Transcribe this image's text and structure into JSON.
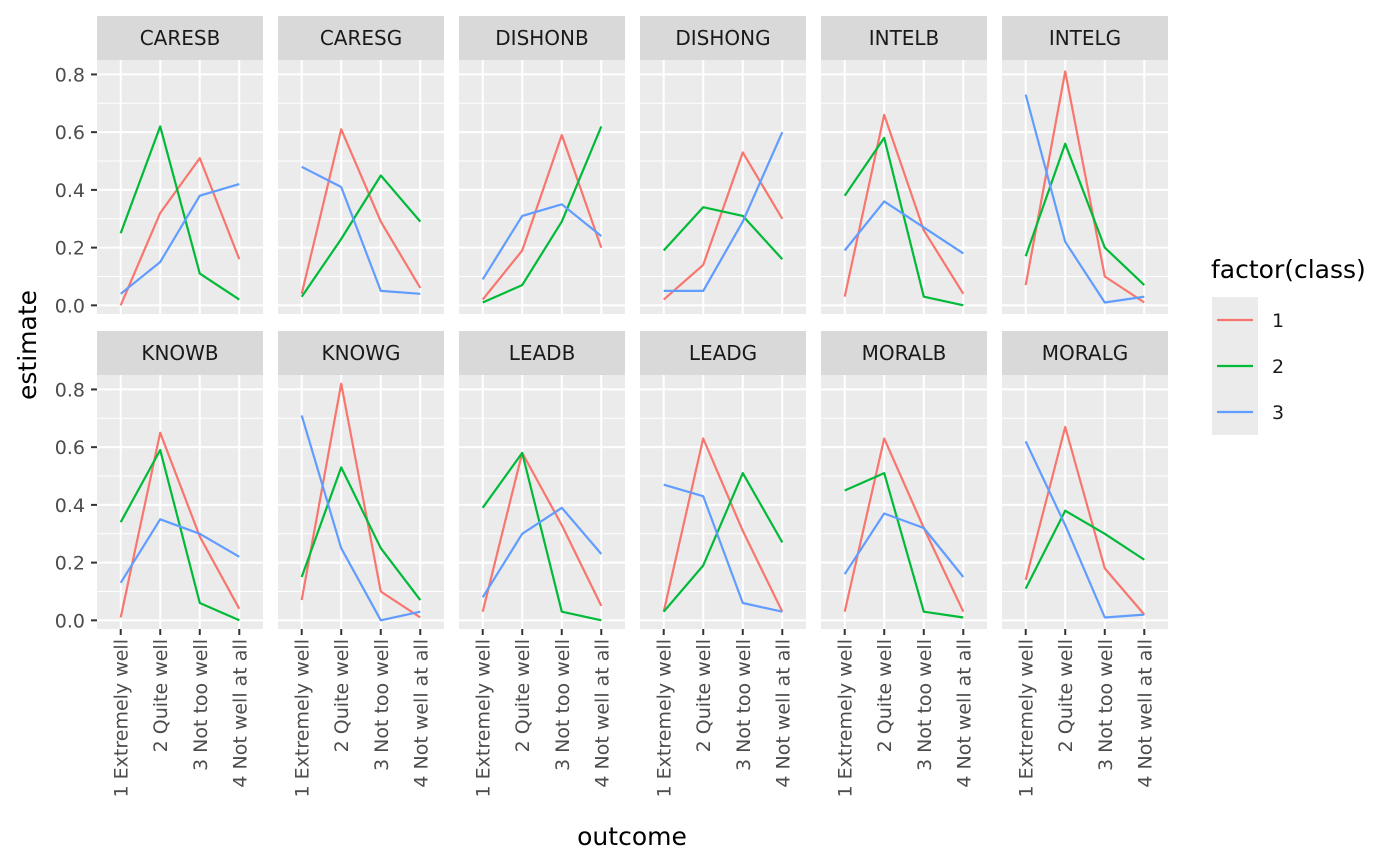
{
  "chart_data": {
    "type": "line",
    "facet_layout": {
      "rows": 2,
      "cols": 6
    },
    "xlabel": "outcome",
    "ylabel": "estimate",
    "x_categories": [
      "1 Extremely well",
      "2 Quite well",
      "3 Not too well",
      "4 Not well at all"
    ],
    "y_ticks": [
      "0.0",
      "0.2",
      "0.4",
      "0.6",
      "0.8"
    ],
    "y_tick_values": [
      0.0,
      0.2,
      0.4,
      0.6,
      0.8
    ],
    "ylim": [
      -0.03,
      0.85
    ],
    "legend": {
      "title": "factor(class)",
      "entries": [
        {
          "label": "1",
          "color": "#F8766D"
        },
        {
          "label": "2",
          "color": "#00BA38"
        },
        {
          "label": "3",
          "color": "#619CFF"
        }
      ]
    },
    "panel_background": "#EBEBEB",
    "strip_background": "#D9D9D9",
    "grid": true,
    "facets": [
      {
        "name": "CARESB",
        "series": [
          [
            0.0,
            0.32,
            0.51,
            0.16
          ],
          [
            0.25,
            0.62,
            0.11,
            0.02
          ],
          [
            0.04,
            0.15,
            0.38,
            0.42
          ]
        ]
      },
      {
        "name": "CARESG",
        "series": [
          [
            0.04,
            0.61,
            0.29,
            0.06
          ],
          [
            0.03,
            0.23,
            0.45,
            0.29
          ],
          [
            0.48,
            0.41,
            0.05,
            0.04
          ]
        ]
      },
      {
        "name": "DISHONB",
        "series": [
          [
            0.02,
            0.19,
            0.59,
            0.2
          ],
          [
            0.01,
            0.07,
            0.29,
            0.62
          ],
          [
            0.09,
            0.31,
            0.35,
            0.24
          ]
        ]
      },
      {
        "name": "DISHONG",
        "series": [
          [
            0.02,
            0.14,
            0.53,
            0.3
          ],
          [
            0.19,
            0.34,
            0.31,
            0.16
          ],
          [
            0.05,
            0.05,
            0.29,
            0.6
          ]
        ]
      },
      {
        "name": "INTELB",
        "series": [
          [
            0.03,
            0.66,
            0.26,
            0.04
          ],
          [
            0.38,
            0.58,
            0.03,
            0.0
          ],
          [
            0.19,
            0.36,
            0.27,
            0.18
          ]
        ]
      },
      {
        "name": "INTELG",
        "series": [
          [
            0.07,
            0.81,
            0.1,
            0.01
          ],
          [
            0.17,
            0.56,
            0.2,
            0.07
          ],
          [
            0.73,
            0.22,
            0.01,
            0.03
          ]
        ]
      },
      {
        "name": "KNOWB",
        "series": [
          [
            0.01,
            0.65,
            0.29,
            0.04
          ],
          [
            0.34,
            0.59,
            0.06,
            0.0
          ],
          [
            0.13,
            0.35,
            0.3,
            0.22
          ]
        ]
      },
      {
        "name": "KNOWG",
        "series": [
          [
            0.07,
            0.82,
            0.1,
            0.01
          ],
          [
            0.15,
            0.53,
            0.25,
            0.07
          ],
          [
            0.71,
            0.25,
            0.0,
            0.03
          ]
        ]
      },
      {
        "name": "LEADB",
        "series": [
          [
            0.03,
            0.58,
            0.33,
            0.05
          ],
          [
            0.39,
            0.58,
            0.03,
            0.0
          ],
          [
            0.08,
            0.3,
            0.39,
            0.23
          ]
        ]
      },
      {
        "name": "LEADG",
        "series": [
          [
            0.03,
            0.63,
            0.31,
            0.03
          ],
          [
            0.03,
            0.19,
            0.51,
            0.27
          ],
          [
            0.47,
            0.43,
            0.06,
            0.03
          ]
        ]
      },
      {
        "name": "MORALB",
        "series": [
          [
            0.03,
            0.63,
            0.32,
            0.03
          ],
          [
            0.45,
            0.51,
            0.03,
            0.01
          ],
          [
            0.16,
            0.37,
            0.32,
            0.15
          ]
        ]
      },
      {
        "name": "MORALG",
        "series": [
          [
            0.14,
            0.67,
            0.18,
            0.02
          ],
          [
            0.11,
            0.38,
            0.3,
            0.21
          ],
          [
            0.62,
            0.33,
            0.01,
            0.02
          ]
        ]
      }
    ]
  }
}
